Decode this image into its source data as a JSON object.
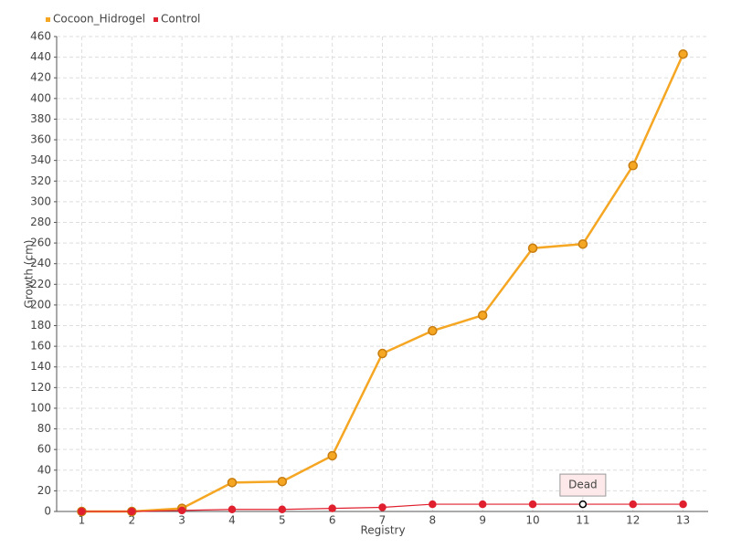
{
  "chart_data": {
    "type": "line",
    "x_label": "Registry",
    "y_label": "Growth (cm)",
    "categories": [
      "1",
      "2",
      "3",
      "4",
      "5",
      "6",
      "7",
      "8",
      "9",
      "10",
      "11",
      "12",
      "13"
    ],
    "series": [
      {
        "name": "Cocoon_Hidrogel",
        "color": "#f5a623",
        "values": [
          0,
          0,
          3,
          28,
          29,
          54,
          153,
          175,
          190,
          255,
          259,
          335,
          443
        ]
      },
      {
        "name": "Control",
        "color": "#e0202e",
        "values": [
          0,
          0,
          1,
          2,
          2,
          3,
          4,
          7,
          7,
          7,
          7,
          7,
          7
        ]
      }
    ],
    "annotation": {
      "text": "Dead",
      "series": "Control",
      "category": "11"
    },
    "ylim": [
      0,
      460
    ],
    "yticks": [
      0,
      20,
      40,
      60,
      80,
      100,
      120,
      140,
      160,
      180,
      200,
      220,
      240,
      260,
      280,
      300,
      320,
      340,
      360,
      380,
      400,
      420,
      440,
      460
    ],
    "grid": true,
    "legend": "top-left"
  }
}
